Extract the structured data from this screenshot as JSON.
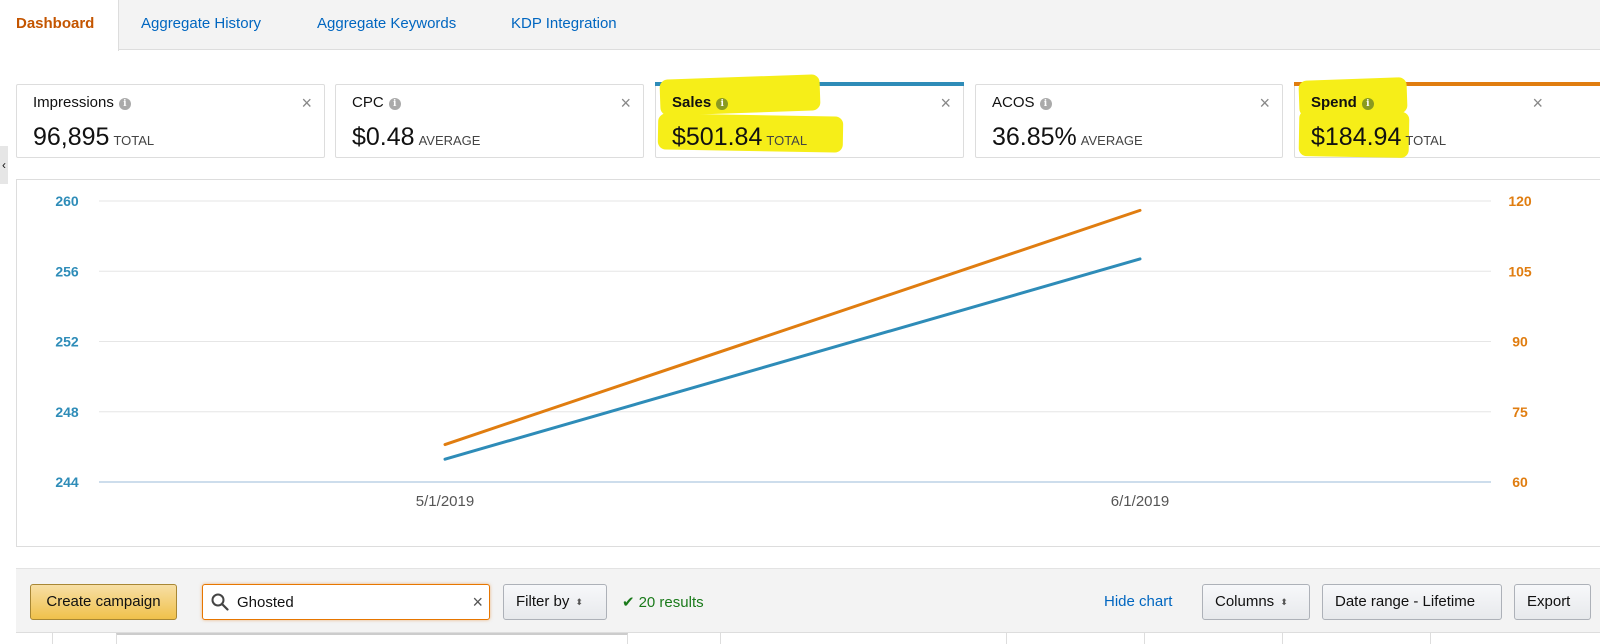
{
  "tabs": [
    {
      "label": "Dashboard",
      "active": true
    },
    {
      "label": "Aggregate History",
      "active": false
    },
    {
      "label": "Aggregate Keywords",
      "active": false
    },
    {
      "label": "KDP Integration",
      "active": false
    }
  ],
  "collapse_glyph": "‹",
  "metrics": [
    {
      "label": "Impressions",
      "value": "96,895",
      "unit": "TOTAL"
    },
    {
      "label": "CPC",
      "value": "$0.48",
      "unit": "AVERAGE"
    },
    {
      "label": "Sales",
      "value": "$501.84",
      "unit": "TOTAL",
      "selected": true,
      "color": "#2e8cb8"
    },
    {
      "label": "ACOS",
      "value": "36.85%",
      "unit": "AVERAGE"
    },
    {
      "label": "Spend",
      "value": "$184.94",
      "unit": "TOTAL",
      "selected": true,
      "color": "#e07d10"
    }
  ],
  "info_glyph": "i",
  "close_glyph": "×",
  "highlight_color": "#f6ee18",
  "chart_data": {
    "type": "line",
    "x": [
      "5/1/2019",
      "6/1/2019"
    ],
    "series": [
      {
        "axis": "left",
        "color": "#2e8cb8",
        "values": [
          245.3,
          256.7
        ]
      },
      {
        "axis": "right",
        "color": "#e07d10",
        "values": [
          68,
          118
        ]
      }
    ],
    "y_left": {
      "ticks": [
        244,
        248,
        252,
        256,
        260
      ],
      "range": [
        244,
        260
      ],
      "color": "#2e8cb8"
    },
    "y_right": {
      "ticks": [
        60,
        75,
        90,
        105,
        120
      ],
      "range": [
        60,
        120
      ],
      "color": "#e07d10"
    },
    "grid": true,
    "legend": "none"
  },
  "toolbar": {
    "create_campaign": "Create campaign",
    "search_value": "Ghosted",
    "search_clear": "×",
    "filter_by": "Filter by",
    "arrows": "⬍",
    "results_check": "✔",
    "results": "20 results",
    "hide_chart": "Hide chart",
    "columns": "Columns",
    "date_range": "Date range - Lifetime",
    "export": "Export"
  }
}
